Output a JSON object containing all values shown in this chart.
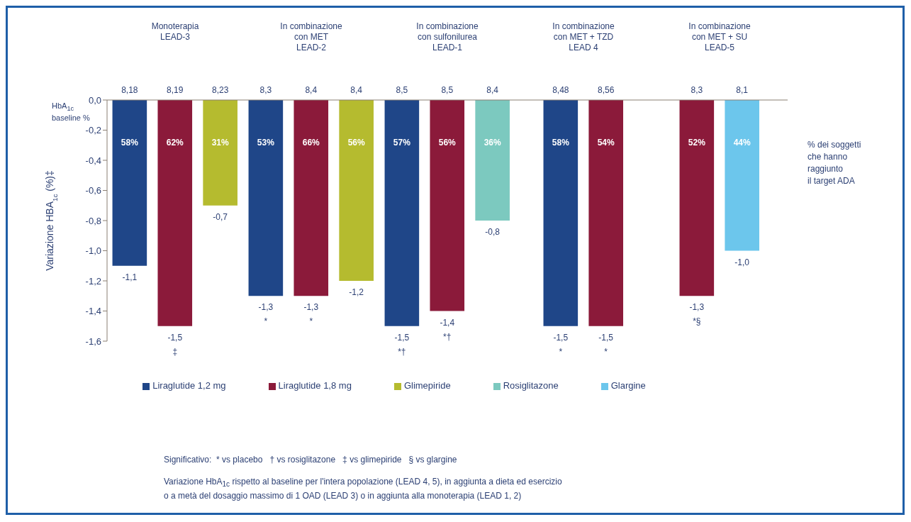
{
  "chart_data": {
    "type": "bar",
    "categories": [
      "Monoterapia\nLEAD-3",
      "In combinazione\ncon MET\nLEAD-2",
      "In combinazione\ncon sulfonilurea\nLEAD-1",
      "In combinazione\ncon MET + TZD\nLEAD 4",
      "In combinazione\ncon MET + SU\nLEAD-5"
    ],
    "series": [
      {
        "name": "Liraglutide 1,2 mg",
        "color": "#1f4688",
        "values": [
          -1.1,
          -1.3,
          -1.5,
          -1.5,
          null
        ],
        "value_labels": [
          "-1,1",
          "-1,3\n*",
          "-1,5\n*†",
          "-1,5\n*",
          null
        ]
      },
      {
        "name": "Liraglutide 1,8 mg",
        "color": "#8b1a3a",
        "values": [
          -1.5,
          -1.3,
          -1.4,
          -1.5,
          -1.3
        ],
        "value_labels": [
          "-1,5\n‡",
          "-1,3\n*",
          "-1,4\n*†",
          "-1,5\n*",
          "-1,3\n*§"
        ]
      },
      {
        "name": "Glimepiride",
        "color": "#b5bb2f",
        "values": [
          -0.7,
          -1.2,
          null,
          null,
          null
        ],
        "value_labels": [
          "-0,7",
          "-1,2",
          null,
          null,
          null
        ]
      },
      {
        "name": "Rosiglitazone",
        "color": "#7cc9bf",
        "values": [
          null,
          null,
          -0.8,
          null,
          null
        ],
        "value_labels": [
          null,
          null,
          "-0,8",
          null,
          null
        ]
      },
      {
        "name": "Glargine",
        "color": "#6cc6ec",
        "values": [
          null,
          null,
          null,
          null,
          -1.0
        ],
        "value_labels": [
          null,
          null,
          null,
          null,
          "-1,0"
        ]
      }
    ],
    "ylabel": "Variazione HBA$_{1c}$ (%)‡",
    "ylim": [
      -1.6,
      0
    ],
    "yticks": [
      {
        "value": 0,
        "label": "0,0"
      },
      {
        "value": -0.2,
        "label": "-0,2"
      },
      {
        "value": -0.4,
        "label": "-0,4"
      },
      {
        "value": -0.6,
        "label": "-0,6"
      },
      {
        "value": -0.8,
        "label": "-0,8"
      },
      {
        "value": -1,
        "label": "-1,0"
      },
      {
        "value": -1.2,
        "label": "-1,2"
      },
      {
        "value": -1.4,
        "label": "-1,4"
      },
      {
        "value": -1.6,
        "label": "-1,6"
      }
    ],
    "legend": "bottom",
    "annotations": [
      "HbA$_{1c}$\nbaseline %",
      "% dei soggetti\nche hanno\nraggiunto\nil target ADA",
      "Significativo:  * vs placebo   † vs rosiglitazone   ‡ vs glimepiride   § vs glargine",
      "Variazione HbA$_{1c}$ rispetto al baseline per l'intera popolazione (LEAD 4, 5), in aggiunta a dieta ed esercizio\no a metà del dosaggio massimo di 1 OAD (LEAD 3) o in aggiunta alla monoterapia (LEAD 1, 2)",
      "8,18",
      "8,19",
      "8,23",
      "8,3",
      "8,4",
      "8,4",
      "8,5",
      "8,5",
      "8,4",
      "8,48",
      "8,56",
      "8,3",
      "8,1",
      "58%",
      "62%",
      "31%",
      "53%",
      "66%",
      "56%",
      "57%",
      "56%",
      "36%",
      "58%",
      "54%",
      "52%",
      "44%"
    ]
  }
}
